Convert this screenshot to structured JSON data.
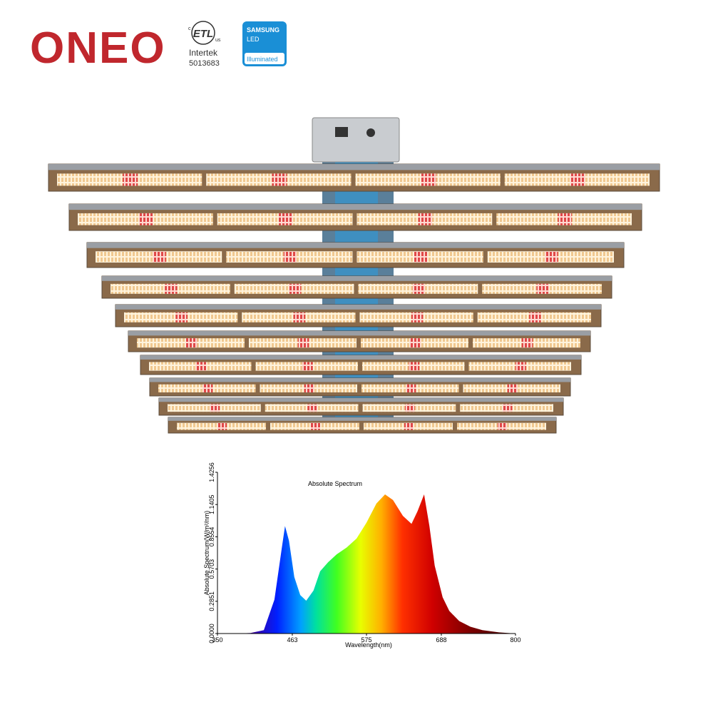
{
  "logo": {
    "brand": "ONEO"
  },
  "certification": {
    "mark": "ETL",
    "left": "c",
    "right": "us",
    "lab": "Intertek",
    "number": "5013683"
  },
  "badge": {
    "line1": "SAMSUNG",
    "line2": "LED",
    "line3": "Illuminated"
  },
  "chart_data": {
    "type": "area",
    "title": "Absolute Spectrum",
    "x_label": "Wavelength(nm)",
    "y_label": "Absolute Spectrum(W/m²/nm)",
    "xlim": [
      350,
      800
    ],
    "ylim": [
      0,
      1.4256
    ],
    "xticks": [
      350,
      463,
      575,
      688,
      800
    ],
    "yticks": [
      {
        "value": 0,
        "label": "0.0000"
      },
      {
        "value": 0.2851,
        "label": "0.2851"
      },
      {
        "value": 0.5703,
        "label": "0.5703"
      },
      {
        "value": 0.8554,
        "label": "0.8554"
      },
      {
        "value": 1.1405,
        "label": "1.1405"
      },
      {
        "value": 1.4256,
        "label": "1.4256"
      }
    ],
    "x": [
      380,
      400,
      420,
      436,
      447,
      452,
      458,
      466,
      475,
      484,
      495,
      505,
      517,
      530,
      545,
      560,
      575,
      590,
      603,
      615,
      630,
      643,
      652,
      662,
      670,
      678,
      690,
      700,
      715,
      732,
      750,
      775,
      800
    ],
    "values": [
      0,
      0.005,
      0.03,
      0.3,
      0.75,
      0.95,
      0.82,
      0.5,
      0.34,
      0.29,
      0.38,
      0.55,
      0.63,
      0.7,
      0.76,
      0.84,
      0.98,
      1.15,
      1.23,
      1.18,
      1.04,
      0.97,
      1.08,
      1.23,
      0.95,
      0.6,
      0.32,
      0.2,
      0.11,
      0.06,
      0.03,
      0.01,
      0
    ]
  }
}
